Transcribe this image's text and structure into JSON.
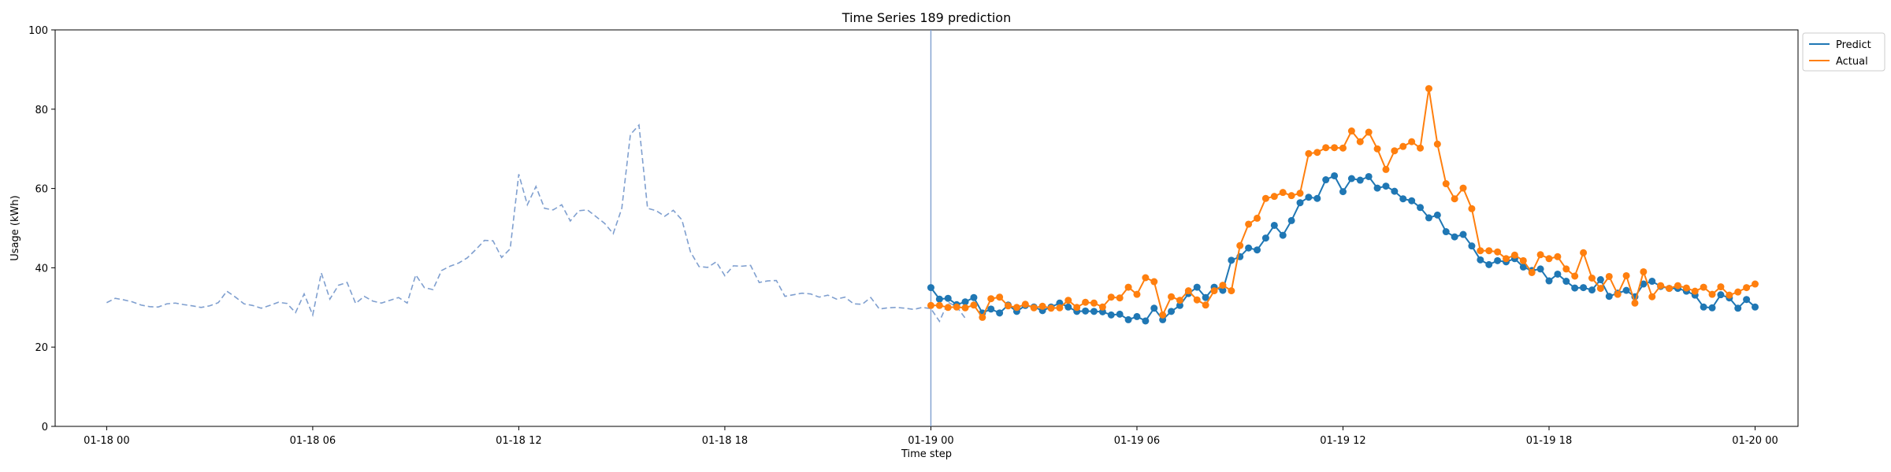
{
  "chart_data": {
    "type": "line",
    "title": "Time Series 189 prediction",
    "xlabel": "Time step",
    "ylabel": "Usage (kWh)",
    "ylim": [
      0,
      100
    ],
    "yticks": [
      0,
      20,
      40,
      60,
      80,
      100
    ],
    "xlim": [
      "01-17 22:30",
      "01-20 01:15"
    ],
    "xticks": [
      "01-18 00",
      "01-18 06",
      "01-18 12",
      "01-18 18",
      "01-19 00",
      "01-19 06",
      "01-19 12",
      "01-19 18",
      "01-20 00"
    ],
    "interval_minutes": 15,
    "legend_position": "top-right",
    "forecast_start": "01-19 00:00",
    "history": {
      "start": "01-18 00:00",
      "step_minutes": 15,
      "values": [
        31.2,
        32.3,
        31.9,
        31.4,
        30.6,
        30.2,
        30.1,
        30.9,
        31.1,
        30.7,
        30.4,
        30.0,
        30.4,
        31.2,
        34.1,
        32.6,
        30.9,
        30.5,
        29.8,
        30.5,
        31.3,
        31.0,
        28.7,
        33.4,
        28.1,
        38.7,
        32.1,
        35.6,
        36.3,
        31.0,
        32.8,
        31.6,
        31.1,
        31.8,
        32.5,
        31.1,
        38.2,
        35.0,
        34.5,
        39.3,
        40.4,
        41.2,
        42.5,
        44.6,
        46.9,
        46.8,
        42.6,
        44.8,
        63.6,
        55.9,
        60.5,
        55.0,
        54.6,
        55.9,
        51.8,
        54.4,
        54.6,
        52.9,
        51.2,
        48.6,
        55.0,
        73.6,
        76.0,
        55.0,
        54.4,
        53.0,
        54.5,
        52.1,
        44.0,
        40.3,
        40.1,
        41.5,
        38.0,
        40.5,
        40.4,
        40.6,
        36.3,
        36.7,
        36.8,
        32.8,
        33.2,
        33.6,
        33.4,
        32.6,
        33.1,
        32.1,
        32.6,
        30.9,
        30.8,
        32.5,
        29.6,
        29.9,
        30.0,
        29.8,
        29.5,
        30.0,
        29.7,
        26.5,
        31.3,
        30.2,
        27.3
      ]
    },
    "series": [
      {
        "name": "Predict",
        "color": "#1f77b4",
        "start": "01-19 00:00",
        "step_minutes": 15,
        "values": [
          35.0,
          32.1,
          32.3,
          30.7,
          31.4,
          32.5,
          28.6,
          29.6,
          28.6,
          30.6,
          29.0,
          30.5,
          30.1,
          29.2,
          30.1,
          31.1,
          30.1,
          29.0,
          29.1,
          29.0,
          28.9,
          28.1,
          28.3,
          26.9,
          27.7,
          26.6,
          29.8,
          26.9,
          29.0,
          30.5,
          33.5,
          35.1,
          32.5,
          35.1,
          34.3,
          41.9,
          42.8,
          45.0,
          44.5,
          47.5,
          50.7,
          48.2,
          51.9,
          56.4,
          57.8,
          57.5,
          62.2,
          63.2,
          59.2,
          62.5,
          62.1,
          63.0,
          60.1,
          60.6,
          59.3,
          57.4,
          56.9,
          55.2,
          52.6,
          53.3,
          49.1,
          47.8,
          48.4,
          45.5,
          42.0,
          40.8,
          41.8,
          41.5,
          42.3,
          40.2,
          39.3,
          39.7,
          36.7,
          38.4,
          36.6,
          34.9,
          35.0,
          34.4,
          37.0,
          32.8,
          33.6,
          34.3,
          32.7,
          35.9,
          36.6,
          35.3,
          34.8,
          34.8,
          34.1,
          33.1,
          30.1,
          29.9,
          33.2,
          32.4,
          29.8,
          32.0,
          30.1
        ]
      },
      {
        "name": "Actual",
        "color": "#ff7f0e",
        "start": "01-19 00:00",
        "step_minutes": 15,
        "values": [
          30.5,
          30.5,
          30.0,
          30.1,
          29.9,
          30.6,
          27.5,
          32.2,
          32.6,
          30.4,
          30.0,
          30.8,
          29.9,
          30.3,
          29.8,
          29.9,
          31.8,
          30.0,
          31.3,
          31.1,
          30.1,
          32.6,
          32.4,
          35.1,
          33.3,
          37.5,
          36.5,
          28.1,
          32.7,
          31.8,
          34.2,
          31.9,
          30.6,
          34.2,
          35.6,
          34.2,
          45.6,
          51.0,
          52.5,
          57.5,
          58.0,
          59.0,
          58.2,
          58.8,
          68.8,
          69.1,
          70.3,
          70.3,
          70.2,
          74.5,
          71.8,
          74.2,
          70.0,
          64.8,
          69.5,
          70.6,
          71.8,
          70.2,
          85.2,
          71.2,
          61.2,
          57.4,
          60.1,
          54.9,
          44.3,
          44.3,
          44.0,
          42.3,
          43.2,
          41.8,
          38.8,
          43.3,
          42.3,
          42.8,
          39.7,
          37.9,
          43.8,
          37.4,
          34.8,
          37.8,
          33.3,
          38.0,
          31.1,
          39.0,
          32.7,
          35.5,
          34.8,
          35.5,
          34.9,
          34.1,
          35.1,
          33.3,
          35.2,
          33.1,
          33.9,
          35.0,
          35.9
        ]
      }
    ]
  }
}
